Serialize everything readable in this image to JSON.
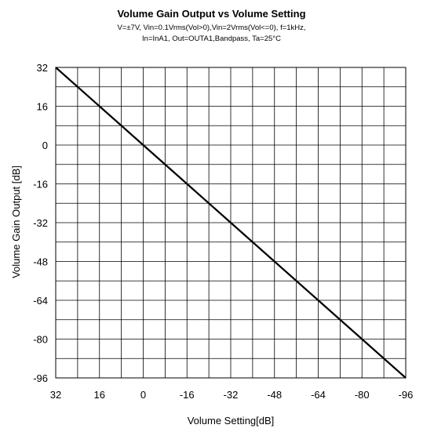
{
  "chart_data": {
    "type": "line",
    "title": "Volume Gain Output vs   Volume Setting",
    "subtitle_lines": [
      "V=±7V, Vin=0.1Vrms(Vol>0),Vin=2Vrms(Vol<=0), f=1kHz,",
      "In=InA1, Out=OUTA1,Bandpass, Ta=25°C"
    ],
    "xlabel": "Volume Setting[dB]",
    "ylabel": "Volume Gain Output [dB]",
    "xlim": [
      32,
      -96
    ],
    "ylim": [
      -96,
      32
    ],
    "xticks": [
      32,
      16,
      0,
      -16,
      -32,
      -48,
      -64,
      -80,
      -96
    ],
    "yticks": [
      32,
      16,
      0,
      -16,
      -32,
      -48,
      -64,
      -80,
      -96
    ],
    "grid": true,
    "series": [
      {
        "x": [
          32,
          16,
          0,
          -16,
          -32,
          -48,
          -64,
          -80,
          -96
        ],
        "y": [
          32,
          16,
          0,
          -16,
          -32,
          -48,
          -64,
          -80,
          -96
        ]
      }
    ]
  }
}
